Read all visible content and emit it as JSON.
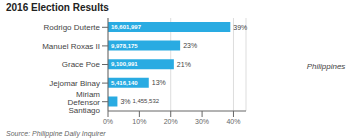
{
  "chart_data": {
    "type": "bar",
    "title": "2016 Election Results",
    "orientation": "horizontal",
    "categories": [
      "Rodrigo Duterte",
      "Manuel Roxas II",
      "Grace Poe",
      "Jejomar Binay",
      "Miriam Defensor Santiago"
    ],
    "values": [
      39,
      23,
      21,
      13,
      3
    ],
    "value_labels": [
      "39%",
      "23%",
      "21%",
      "13%",
      "3%"
    ],
    "data_labels": true,
    "vote_counts": [
      16601997,
      9978175,
      9100991,
      5416140,
      1455532
    ],
    "color": "#29abe2",
    "xlim": [
      0,
      44
    ],
    "xticks": [
      {
        "value": 0,
        "label": "0%"
      },
      {
        "value": 10,
        "label": "10%"
      },
      {
        "value": 20,
        "label": "20%"
      },
      {
        "value": 30,
        "label": "30%"
      },
      {
        "value": 40,
        "label": "40%"
      }
    ],
    "grid": true,
    "annotations": [
      "Source: Philippine Daily Inquirer",
      "Philippines"
    ]
  }
}
